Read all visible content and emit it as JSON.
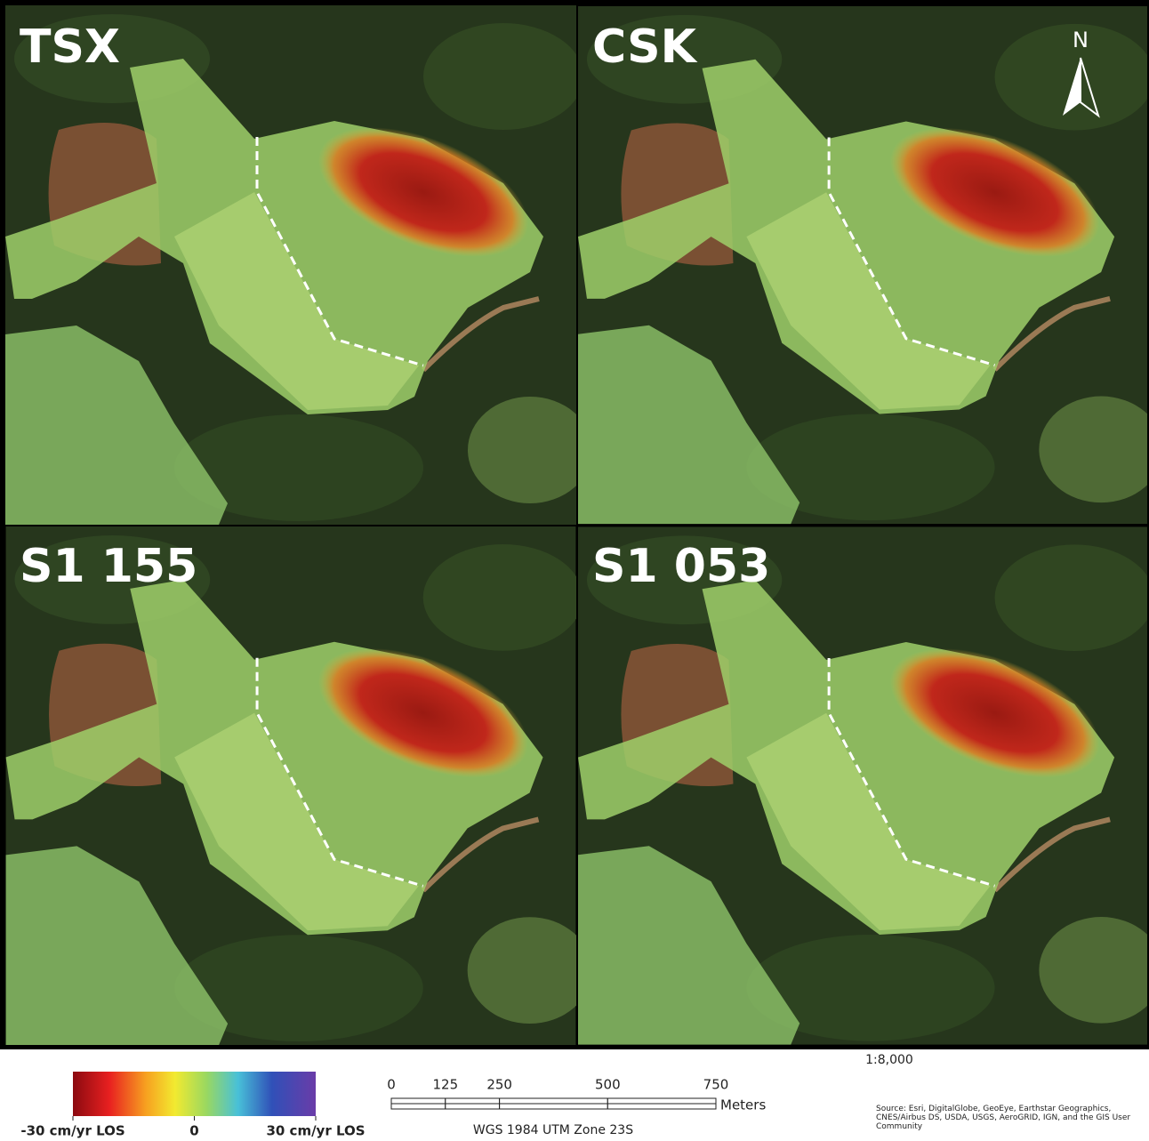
{
  "panels": [
    {
      "label": "TSX"
    },
    {
      "label": "CSK"
    },
    {
      "label": "S1 155"
    },
    {
      "label": "S1 053"
    }
  ],
  "north_arrow": "N",
  "legend": {
    "ticks": [
      {
        "value": -30,
        "label": "-30 cm/yr LOS"
      },
      {
        "value": 0,
        "label": "0"
      },
      {
        "value": 30,
        "label": "30 cm/yr LOS"
      }
    ]
  },
  "scale_bar": {
    "ratio": "1:8,000",
    "ticks": [
      0,
      125,
      250,
      500,
      750
    ],
    "unit": "Meters",
    "projection": "WGS 1984 UTM Zone 23S"
  },
  "source": "Source: Esri, DigitalGlobe, GeoEye, Earthstar Geographics, CNES/Airbus DS, USDA, USGS, AeroGRID, IGN, and the GIS User Community"
}
